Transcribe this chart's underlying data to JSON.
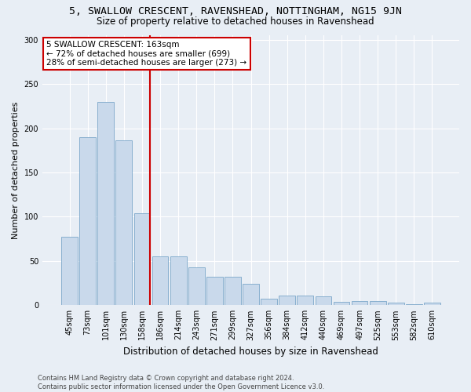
{
  "title": "5, SWALLOW CRESCENT, RAVENSHEAD, NOTTINGHAM, NG15 9JN",
  "subtitle": "Size of property relative to detached houses in Ravenshead",
  "xlabel": "Distribution of detached houses by size in Ravenshead",
  "ylabel": "Number of detached properties",
  "categories": [
    "45sqm",
    "73sqm",
    "101sqm",
    "130sqm",
    "158sqm",
    "186sqm",
    "214sqm",
    "243sqm",
    "271sqm",
    "299sqm",
    "327sqm",
    "356sqm",
    "384sqm",
    "412sqm",
    "440sqm",
    "469sqm",
    "497sqm",
    "525sqm",
    "553sqm",
    "582sqm",
    "610sqm"
  ],
  "values": [
    77,
    190,
    230,
    186,
    104,
    55,
    55,
    43,
    32,
    32,
    24,
    7,
    11,
    11,
    10,
    4,
    5,
    5,
    3,
    1,
    3
  ],
  "bar_color": "#c9d9eb",
  "bar_edge_color": "#7ba7c9",
  "marker_index": 4,
  "marker_color": "#cc0000",
  "annotation_text": "5 SWALLOW CRESCENT: 163sqm\n← 72% of detached houses are smaller (699)\n28% of semi-detached houses are larger (273) →",
  "annotation_box_color": "#ffffff",
  "annotation_box_edge": "#cc0000",
  "ylim": [
    0,
    305
  ],
  "yticks": [
    0,
    50,
    100,
    150,
    200,
    250,
    300
  ],
  "footnote": "Contains HM Land Registry data © Crown copyright and database right 2024.\nContains public sector information licensed under the Open Government Licence v3.0.",
  "background_color": "#e8eef5",
  "grid_color": "#ffffff",
  "title_fontsize": 9.5,
  "subtitle_fontsize": 8.5,
  "ylabel_fontsize": 8,
  "xlabel_fontsize": 8.5,
  "tick_fontsize": 7,
  "footnote_fontsize": 6
}
